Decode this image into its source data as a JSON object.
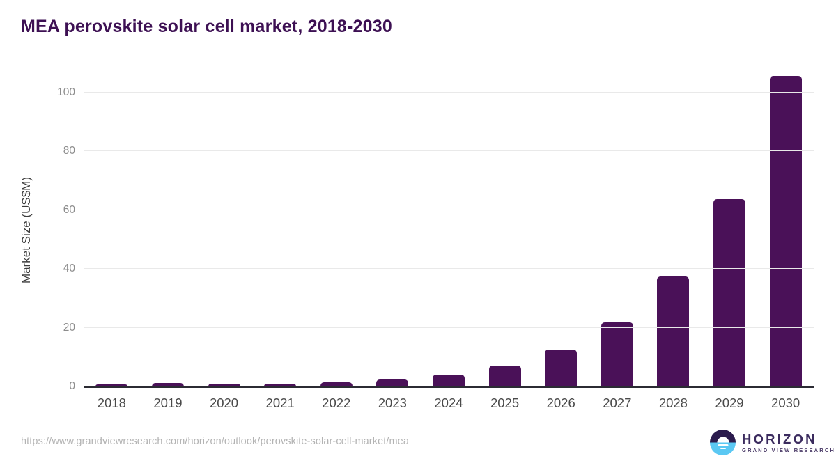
{
  "chart": {
    "title": "MEA perovskite solar cell market, 2018-2030"
  },
  "chart_data": {
    "type": "bar",
    "title": "MEA perovskite solar cell market, 2018-2030",
    "categories": [
      "2018",
      "2019",
      "2020",
      "2021",
      "2022",
      "2023",
      "2024",
      "2025",
      "2026",
      "2027",
      "2028",
      "2029",
      "2030"
    ],
    "values": [
      0.6,
      1.1,
      0.9,
      0.9,
      1.4,
      2.3,
      4.0,
      7.1,
      12.5,
      21.8,
      37.5,
      63.7,
      105.8
    ],
    "xlabel": "",
    "ylabel": "Market Size (US$M)",
    "ylim": [
      0,
      107
    ],
    "yticks": [
      0,
      20,
      40,
      60,
      80,
      100
    ],
    "grid": true,
    "legend": false,
    "bar_color": "#4a1158"
  },
  "footer": {
    "source_url": "https://www.grandviewresearch.com/horizon/outlook/perovskite-solar-cell-market/mea",
    "logo_title": "HORIZON",
    "logo_subtitle": "GRAND VIEW RESEARCH"
  },
  "colors": {
    "title_color": "#3d1053",
    "bar_color": "#4a1158",
    "grid_color": "#e9e9e9",
    "axis_color": "#2b2b33",
    "logo_navy": "#2b1b4d",
    "logo_blue": "#5bc8f3",
    "logo_text": "#3b2b5e"
  }
}
